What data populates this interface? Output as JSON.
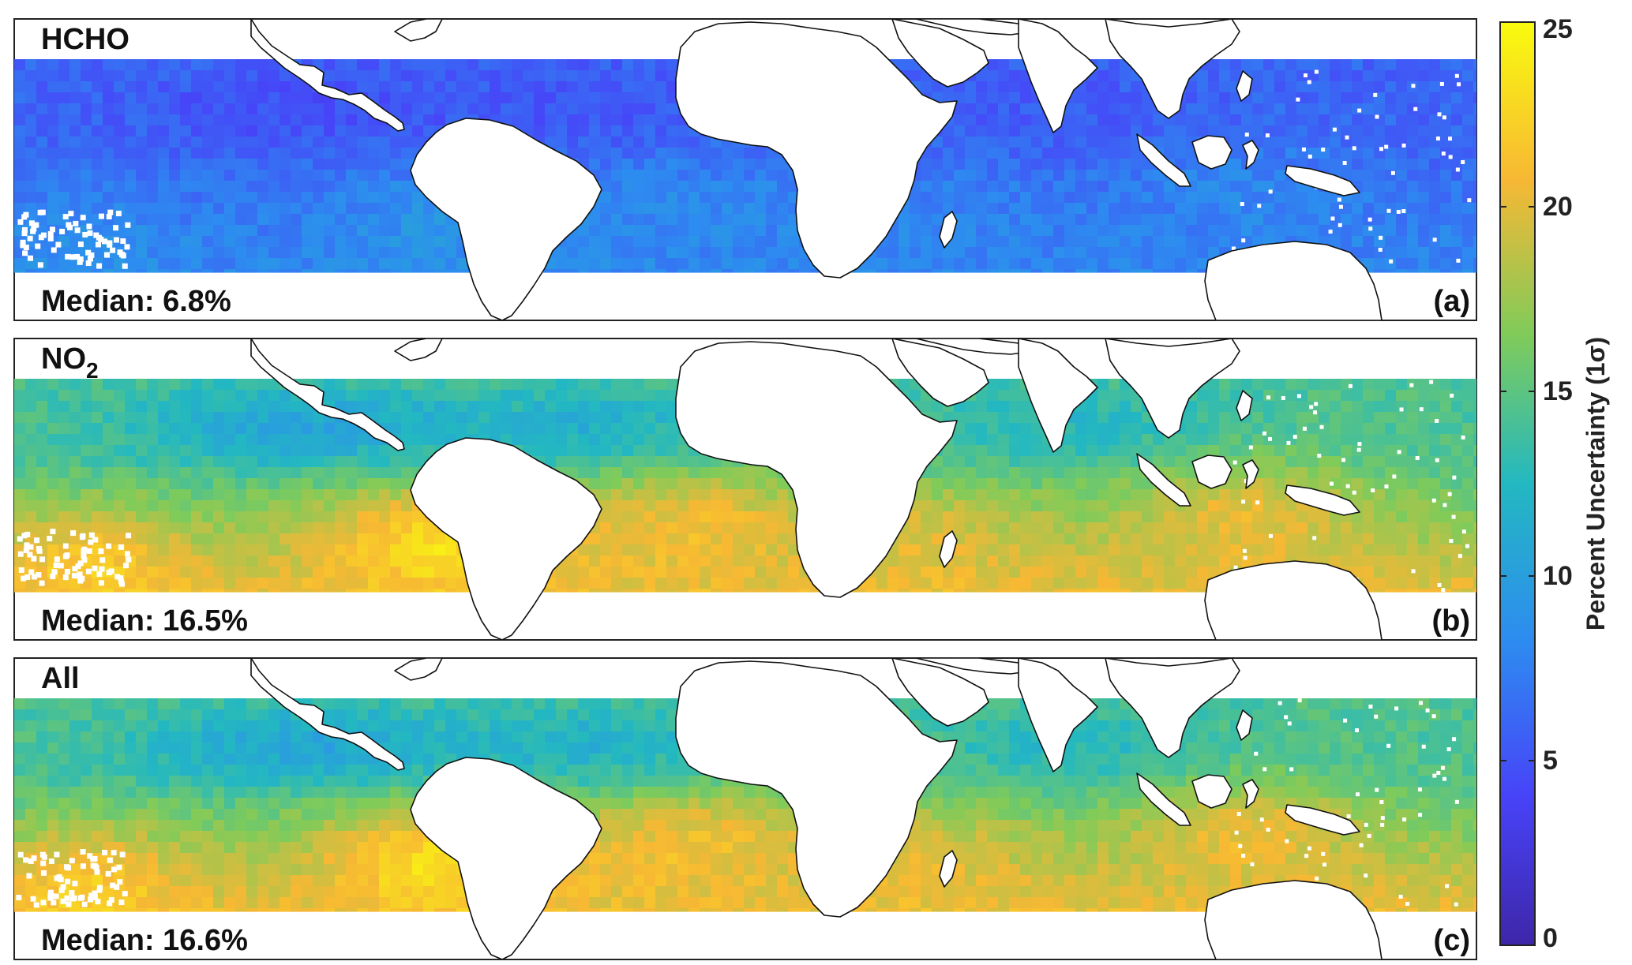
{
  "panels": [
    {
      "species": "HCHO",
      "species_sub": "",
      "median_text": "Median: 6.8%",
      "letter": "(a)",
      "field": {
        "base": 6.8
      }
    },
    {
      "species": "NO",
      "species_sub": "2",
      "median_text": "Median: 16.5%",
      "letter": "(b)",
      "field": {
        "base": 16.5
      }
    },
    {
      "species": "All",
      "species_sub": "",
      "median_text": "Median: 16.6%",
      "letter": "(c)",
      "field": {
        "base": 16.6
      }
    }
  ],
  "colorbar": {
    "label": "Percent Uncertainty (1σ)",
    "min": 0,
    "max": 25,
    "ticks": [
      "0",
      "5",
      "10",
      "15",
      "20",
      "25"
    ],
    "colormap": "parula",
    "stops": [
      "#3e26a8",
      "#4743f8",
      "#2d8cf0",
      "#23b8c1",
      "#7fcb5a",
      "#f7b834",
      "#f9fb0e"
    ]
  }
}
